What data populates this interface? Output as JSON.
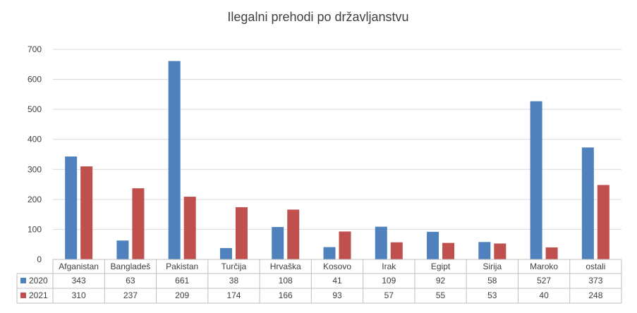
{
  "chart_data": {
    "type": "bar",
    "title": "Ilegalni prehodi po državljanstvu",
    "xlabel": "",
    "ylabel": "",
    "ylim": [
      0,
      700
    ],
    "yticks": [
      0,
      100,
      200,
      300,
      400,
      500,
      600,
      700
    ],
    "grid": true,
    "legend": "data-table",
    "categories": [
      "Afganistan",
      "Bangladeš",
      "Pakistan",
      "Turčija",
      "Hrvaška",
      "Kosovo",
      "Irak",
      "Egipt",
      "Sirija",
      "Maroko",
      "ostali"
    ],
    "series": [
      {
        "name": "2020",
        "color": "#4f81bd",
        "values": [
          343,
          63,
          661,
          38,
          108,
          41,
          109,
          92,
          58,
          527,
          373
        ]
      },
      {
        "name": "2021",
        "color": "#c0504d",
        "values": [
          310,
          237,
          209,
          174,
          166,
          93,
          57,
          55,
          53,
          40,
          248
        ]
      }
    ]
  }
}
